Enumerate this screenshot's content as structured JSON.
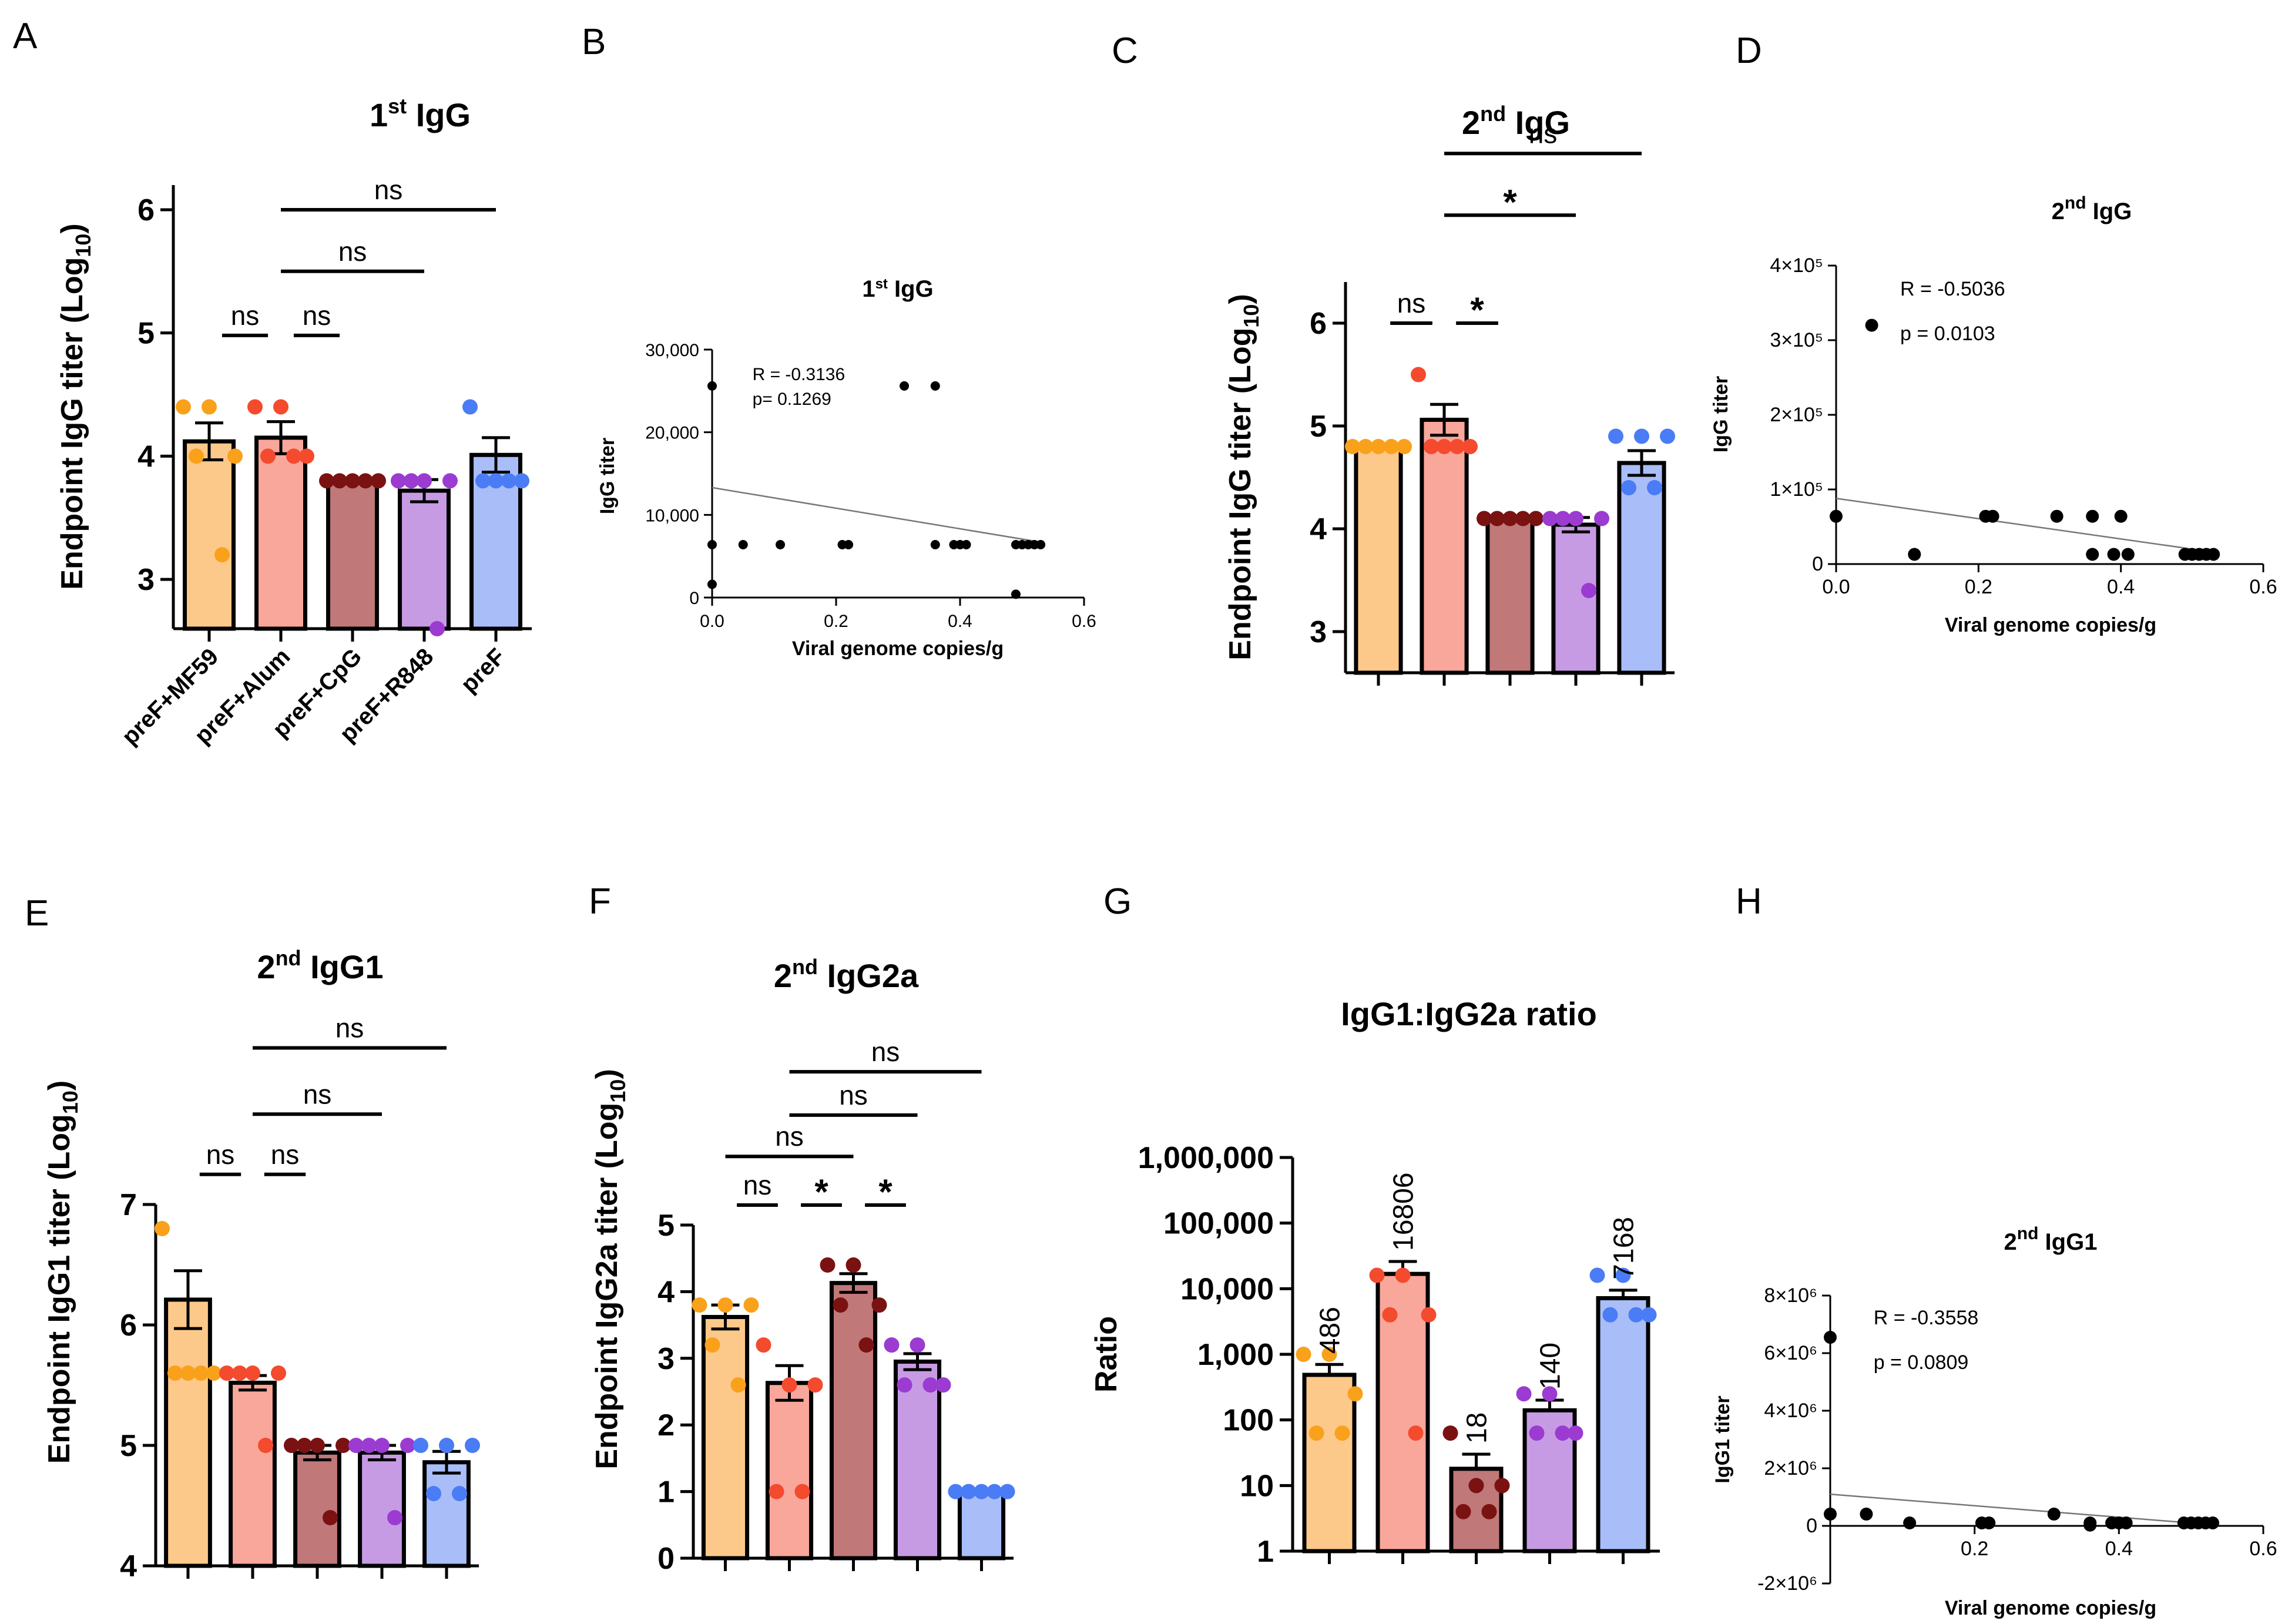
{
  "colors": {
    "dot": [
      "#F9A11B",
      "#F44A2E",
      "#7A1212",
      "#9B3BD1",
      "#4A7CF5"
    ],
    "fill": [
      "#FDC98A",
      "#F9A79B",
      "#C07878",
      "#C79BE4",
      "#A9BEF8"
    ],
    "line": "#000000",
    "fit_line": "#777777"
  },
  "panel_labels": [
    "A",
    "B",
    "C",
    "D",
    "E",
    "F",
    "G",
    "H"
  ],
  "chart_data": [
    {
      "id": "A",
      "type": "bar",
      "title": "1",
      "title_sup": "st",
      "title_rest": " IgG",
      "ylabel": "Endpoint IgG titer (Log",
      "ylabel_sub": "10",
      "ylabel_end": ")",
      "ylim": [
        2.6,
        6.2
      ],
      "yticks": [
        3,
        4,
        5,
        6
      ],
      "categories": [
        "preF+MF59",
        "preF+Alum",
        "preF+CpG",
        "preF+R848",
        "preF"
      ],
      "values": [
        4.12,
        4.15,
        3.8,
        3.72,
        4.01
      ],
      "sem": [
        0.15,
        0.13,
        0.02,
        0.09,
        0.14
      ],
      "points": [
        [
          4.4,
          4.4,
          4.0,
          4.0,
          3.2
        ],
        [
          4.4,
          4.4,
          4.0,
          4.0,
          4.0
        ],
        [
          3.8,
          3.8,
          3.8,
          3.8,
          3.8
        ],
        [
          3.8,
          3.8,
          3.8,
          3.8,
          2.6
        ],
        [
          4.4,
          3.8,
          3.8,
          3.8,
          3.8
        ]
      ],
      "brackets": [
        {
          "from": 0,
          "to": 1,
          "level": 4.98,
          "label": "ns"
        },
        {
          "from": 1,
          "to": 2,
          "level": 4.98,
          "label": "ns"
        },
        {
          "from": 1,
          "to": 3,
          "level": 5.5,
          "label": "ns"
        },
        {
          "from": 1,
          "to": 4,
          "level": 6.0,
          "label": "ns"
        }
      ]
    },
    {
      "id": "B",
      "type": "scatter",
      "title": "1",
      "title_sup": "st",
      "title_rest": " IgG",
      "xlabel": "Viral genome copies/g",
      "ylabel": "IgG titer",
      "xlim": [
        0,
        0.6
      ],
      "ylim": [
        0,
        30000
      ],
      "xticks": [
        0.0,
        0.2,
        0.4,
        0.6
      ],
      "xtick_labels": [
        "0.0",
        "0.2",
        "0.4",
        "0.6"
      ],
      "yticks": [
        0,
        10000,
        20000,
        30000
      ],
      "ytick_labels": [
        "0",
        "10,000",
        "20,000",
        "30,000"
      ],
      "x": [
        0.0,
        0.0,
        0.0,
        0.05,
        0.11,
        0.21,
        0.22,
        0.31,
        0.36,
        0.36,
        0.39,
        0.4,
        0.41,
        0.49,
        0.49,
        0.5,
        0.51,
        0.52,
        0.53
      ],
      "y": [
        25600,
        6400,
        1600,
        6400,
        6400,
        6400,
        6400,
        25600,
        25600,
        6400,
        6400,
        6400,
        6400,
        6400,
        400,
        6400,
        6400,
        6400,
        6400
      ],
      "fit": [
        [
          0.0,
          13300
        ],
        [
          0.53,
          6700
        ]
      ],
      "stats": [
        "R = -0.3136",
        "p= 0.1269"
      ]
    },
    {
      "id": "C",
      "type": "bar",
      "title": "2",
      "title_sup": "nd",
      "title_rest": " IgG",
      "ylabel": "Endpoint IgG titer (Log",
      "ylabel_sub": "10",
      "ylabel_end": ")",
      "ylim": [
        2.6,
        6.4
      ],
      "yticks": [
        3,
        4,
        5,
        6
      ],
      "categories": [
        "",
        "",
        "",
        "",
        ""
      ],
      "values": [
        4.8,
        5.06,
        4.1,
        4.04,
        4.64
      ],
      "sem": [
        0.0,
        0.15,
        0.0,
        0.07,
        0.12
      ],
      "points": [
        [
          4.8,
          4.8,
          4.8,
          4.8,
          4.8
        ],
        [
          5.5,
          4.8,
          4.8,
          4.8,
          4.8
        ],
        [
          4.1,
          4.1,
          4.1,
          4.1,
          4.1
        ],
        [
          4.1,
          4.1,
          4.1,
          4.1,
          3.4
        ],
        [
          4.9,
          4.9,
          4.9,
          4.4,
          4.4
        ]
      ],
      "brackets": [
        {
          "from": 0,
          "to": 1,
          "level": 6.0,
          "label": "ns"
        },
        {
          "from": 1,
          "to": 2,
          "level": 6.0,
          "label": "*"
        },
        {
          "from": 1,
          "to": 3,
          "level": 7.05,
          "label": "*"
        },
        {
          "from": 1,
          "to": 4,
          "level": 7.65,
          "label": "ns"
        }
      ]
    },
    {
      "id": "D",
      "type": "scatter",
      "title": "2",
      "title_sup": "nd",
      "title_rest": " IgG",
      "xlabel": "Viral genome copies/g",
      "ylabel": "IgG titer",
      "xlim": [
        0,
        0.6
      ],
      "ylim": [
        0,
        400000
      ],
      "xticks": [
        0.0,
        0.2,
        0.4,
        0.6
      ],
      "xtick_labels": [
        "0.0",
        "0.2",
        "0.4",
        "0.6"
      ],
      "yticks": [
        0,
        100000,
        200000,
        300000,
        400000
      ],
      "ytick_labels": [
        "0",
        "1×10⁵",
        "2×10⁵",
        "3×10⁵",
        "4×10⁵"
      ],
      "x": [
        0.0,
        0.05,
        0.11,
        0.21,
        0.22,
        0.31,
        0.36,
        0.36,
        0.39,
        0.4,
        0.41,
        0.49,
        0.5,
        0.51,
        0.52,
        0.53
      ],
      "y": [
        64000,
        320000,
        13000,
        64000,
        64000,
        64000,
        64000,
        13000,
        13000,
        64000,
        13000,
        13000,
        13000,
        13000,
        13000,
        13000
      ],
      "fit": [
        [
          0.0,
          88000
        ],
        [
          0.53,
          16000
        ]
      ],
      "stats": [
        "R = -0.5036",
        "p = 0.0103"
      ]
    },
    {
      "id": "E",
      "type": "bar",
      "title": "2",
      "title_sup": "nd",
      "title_rest": " IgG1",
      "ylabel": "Endpoint IgG1 titer (Log",
      "ylabel_sub": "10",
      "ylabel_end": ")",
      "ylim": [
        4,
        7
      ],
      "yticks": [
        4,
        5,
        6,
        7
      ],
      "categories": [
        "",
        "",
        "",
        "",
        ""
      ],
      "values": [
        6.21,
        5.52,
        4.94,
        4.94,
        4.86
      ],
      "sem": [
        0.24,
        0.06,
        0.06,
        0.06,
        0.09
      ],
      "points": [
        [
          6.8,
          5.6,
          5.6,
          5.6,
          5.6
        ],
        [
          5.6,
          5.6,
          5.6,
          5.6,
          5.0
        ],
        [
          5.0,
          5.0,
          5.0,
          5.0,
          4.4
        ],
        [
          5.0,
          5.0,
          5.0,
          5.0,
          4.4
        ],
        [
          5.0,
          5.0,
          5.0,
          4.6,
          4.6
        ]
      ],
      "brackets": [
        {
          "from": 0,
          "to": 1,
          "level": 7.25,
          "label": "ns"
        },
        {
          "from": 1,
          "to": 2,
          "level": 7.25,
          "label": "ns"
        },
        {
          "from": 1,
          "to": 3,
          "level": 7.75,
          "label": "ns"
        },
        {
          "from": 1,
          "to": 4,
          "level": 8.3,
          "label": "ns"
        }
      ]
    },
    {
      "id": "F",
      "type": "bar",
      "title": "2",
      "title_sup": "nd",
      "title_rest": " IgG2a",
      "ylabel": "Endpoint IgG2a titer (Log",
      "ylabel_sub": "10",
      "ylabel_end": ")",
      "ylim": [
        0,
        5
      ],
      "yticks": [
        0,
        1,
        2,
        3,
        4,
        5
      ],
      "categories": [
        "",
        "",
        "",
        "",
        ""
      ],
      "values": [
        3.62,
        2.63,
        4.13,
        2.95,
        1.0
      ],
      "sem": [
        0.18,
        0.26,
        0.14,
        0.12,
        0.0
      ],
      "points": [
        [
          3.8,
          3.8,
          3.8,
          3.2,
          2.6
        ],
        [
          3.2,
          2.6,
          2.6,
          1.0,
          1.0
        ],
        [
          4.4,
          4.4,
          3.8,
          3.8,
          3.2
        ],
        [
          3.2,
          3.2,
          2.6,
          2.6,
          2.6
        ],
        [
          1.0,
          1.0,
          1.0,
          1.0,
          1.0
        ]
      ],
      "brackets": [
        {
          "from": 0,
          "to": 1,
          "level": 5.3,
          "label": "ns"
        },
        {
          "from": 1,
          "to": 2,
          "level": 5.3,
          "label": "*"
        },
        {
          "from": 2,
          "to": 3,
          "level": 5.3,
          "label": "*"
        },
        {
          "from": 0,
          "to": 2,
          "level": 6.03,
          "label": "ns"
        },
        {
          "from": 1,
          "to": 3,
          "level": 6.65,
          "label": "ns"
        },
        {
          "from": 1,
          "to": 4,
          "level": 7.3,
          "label": "ns"
        }
      ]
    },
    {
      "id": "G",
      "type": "bar",
      "scale": "log",
      "title": "IgG1:IgG2a ratio",
      "ylabel": "Ratio",
      "ylim": [
        1,
        1000000
      ],
      "yticks": [
        1,
        10,
        100,
        1000,
        10000,
        100000,
        1000000
      ],
      "ytick_labels": [
        "1",
        "10",
        "100",
        "1,000",
        "10,000",
        "100,000",
        "1,000,000"
      ],
      "categories": [
        "",
        "",
        "",
        "",
        ""
      ],
      "values": [
        486,
        16806,
        18,
        140,
        7168
      ],
      "value_labels": [
        "486",
        "16806",
        "18",
        "140",
        "7168"
      ],
      "err_upper": [
        700,
        26000,
        30,
        200,
        9500
      ],
      "points": [
        [
          1000,
          1000,
          250,
          63,
          63
        ],
        [
          16000,
          16000,
          4000,
          4000,
          63
        ],
        [
          63,
          10,
          10,
          4,
          4
        ],
        [
          250,
          250,
          63,
          63,
          63
        ],
        [
          16000,
          16000,
          4000,
          4000,
          4000
        ]
      ]
    },
    {
      "id": "H",
      "type": "scatter",
      "title": "2",
      "title_sup": "nd",
      "title_rest": " IgG1",
      "xlabel": "Viral genome copies/g",
      "ylabel": "IgG1 titer",
      "xlim": [
        0,
        0.6
      ],
      "ylim": [
        -2000000,
        8000000
      ],
      "xticks": [
        0.2,
        0.4,
        0.6
      ],
      "xtick_labels": [
        "0.2",
        "0.4",
        "0.6"
      ],
      "yticks": [
        -2000000,
        0,
        2000000,
        4000000,
        6000000,
        8000000
      ],
      "ytick_labels": [
        "-2×10⁶",
        "0",
        "2×10⁶",
        "4×10⁶",
        "6×10⁶",
        "8×10⁶"
      ],
      "x": [
        0.0,
        0.0,
        0.05,
        0.11,
        0.21,
        0.22,
        0.31,
        0.36,
        0.36,
        0.39,
        0.4,
        0.41,
        0.49,
        0.5,
        0.51,
        0.52,
        0.53
      ],
      "y": [
        6550000,
        409600,
        409600,
        102400,
        102400,
        102400,
        409600,
        25600,
        102400,
        102400,
        102400,
        102400,
        102400,
        102400,
        102400,
        102400,
        102400
      ],
      "fit": [
        [
          0.0,
          1100000
        ],
        [
          0.53,
          40000
        ]
      ],
      "stats": [
        "R = -0.3558",
        "p = 0.0809"
      ]
    }
  ]
}
